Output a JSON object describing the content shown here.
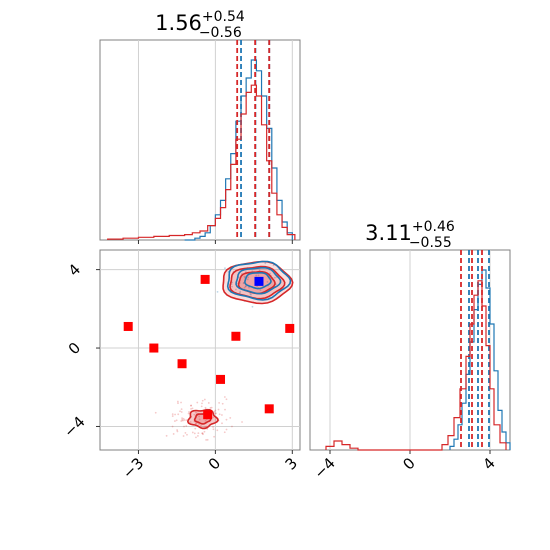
{
  "chart_data": [
    {
      "type": "histogram",
      "panel": "top-left",
      "title_main": "1.56",
      "title_sup": "+0.54",
      "title_sub": "−0.56",
      "xlim": [
        -4.5,
        3.3
      ],
      "grid": true,
      "colors": {
        "blue": "#1f77b4",
        "red": "#d62728"
      },
      "series": [
        {
          "color": "blue",
          "quantile_lines": [
            1.0,
            1.56,
            2.1
          ],
          "bins": [
            -1.2,
            -1.0,
            -0.8,
            -0.6,
            -0.4,
            -0.2,
            0.0,
            0.2,
            0.4,
            0.6,
            0.8,
            1.0,
            1.2,
            1.4,
            1.6,
            1.8,
            2.0,
            2.2,
            2.4,
            2.6,
            2.8,
            3.0
          ],
          "heights": [
            0,
            0,
            1,
            2,
            4,
            8,
            14,
            22,
            34,
            48,
            66,
            80,
            90,
            100,
            94,
            80,
            62,
            40,
            22,
            10,
            4
          ]
        },
        {
          "color": "red",
          "quantile_lines": [
            0.85,
            1.55,
            2.1
          ],
          "bins": [
            -4.2,
            -3.6,
            -3.0,
            -2.4,
            -1.8,
            -1.2,
            -0.9,
            -0.6,
            -0.3,
            0.0,
            0.2,
            0.4,
            0.6,
            0.8,
            1.0,
            1.2,
            1.4,
            1.6,
            1.8,
            2.0,
            2.2,
            2.4,
            2.6,
            2.8,
            3.1
          ],
          "heights": [
            0.5,
            1,
            1.5,
            2,
            2.5,
            3,
            4,
            5,
            8,
            12,
            18,
            28,
            42,
            56,
            70,
            82,
            86,
            80,
            64,
            44,
            26,
            14,
            7,
            3
          ]
        }
      ]
    },
    {
      "type": "scatter-contour",
      "panel": "bottom-left",
      "xlim": [
        -4.5,
        3.3
      ],
      "ylim": [
        -5.2,
        5.0
      ],
      "xticks": [
        -3,
        0,
        3
      ],
      "yticks": [
        4,
        0,
        -4
      ],
      "xtick_labels": [
        "−3",
        "0",
        "3"
      ],
      "ytick_labels": [
        "4",
        "0",
        "−4"
      ],
      "grid": true,
      "red_squares": [
        [
          -3.4,
          1.1
        ],
        [
          -2.4,
          0.0
        ],
        [
          -1.3,
          -0.8
        ],
        [
          -0.4,
          3.5
        ],
        [
          0.8,
          0.6
        ],
        [
          0.2,
          -1.6
        ],
        [
          2.1,
          -3.1
        ],
        [
          2.9,
          1.0
        ],
        [
          -0.3,
          -3.4
        ]
      ],
      "blue_square": [
        1.7,
        3.4
      ],
      "blue_contour_center": [
        1.65,
        3.45
      ],
      "red_contour_center": [
        1.6,
        3.35
      ],
      "small_red_contour_center": [
        -0.5,
        -3.6
      ]
    },
    {
      "type": "histogram",
      "panel": "bottom-right",
      "title_main": "3.11",
      "title_sup": "+0.46",
      "title_sub": "−0.55",
      "xlim": [
        -5.0,
        5.0
      ],
      "xticks": [
        -4,
        0,
        4
      ],
      "xtick_labels": [
        "−4",
        "0",
        "4"
      ],
      "grid": true,
      "series": [
        {
          "color": "blue",
          "quantile_lines": [
            2.95,
            3.4,
            3.95
          ],
          "bins": [
            2.0,
            2.2,
            2.4,
            2.6,
            2.8,
            3.0,
            3.2,
            3.4,
            3.6,
            3.8,
            4.0,
            4.2,
            4.4,
            4.6,
            4.8,
            5.0
          ],
          "heights": [
            2,
            6,
            14,
            26,
            42,
            60,
            78,
            92,
            100,
            90,
            70,
            44,
            22,
            10,
            4
          ]
        },
        {
          "color": "red",
          "quantile_lines": [
            2.55,
            3.1,
            3.6
          ],
          "bins": [
            -4.2,
            -3.8,
            -3.4,
            -3.0,
            -2.6,
            1.6,
            1.9,
            2.2,
            2.5,
            2.8,
            3.0,
            3.2,
            3.4,
            3.6,
            3.8,
            4.0,
            4.2,
            4.5,
            4.8
          ],
          "heights": [
            2,
            5,
            3,
            1,
            0,
            3,
            8,
            18,
            34,
            52,
            70,
            86,
            94,
            80,
            58,
            34,
            14,
            4
          ]
        }
      ]
    }
  ]
}
